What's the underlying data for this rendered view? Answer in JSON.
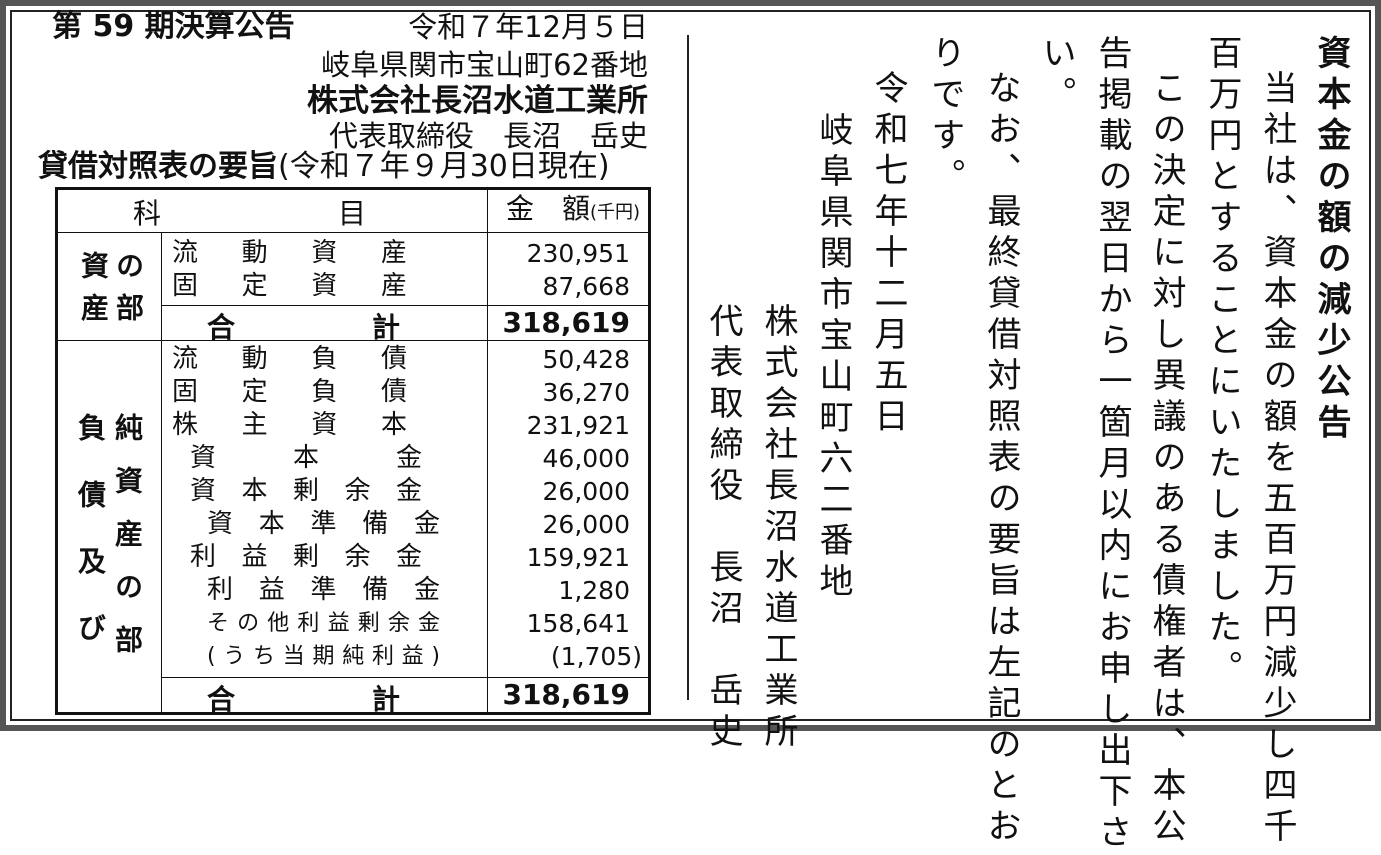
{
  "header": {
    "title": "第 59 期決算公告",
    "date": "令和７年12月５日",
    "address": "岐阜県関市宝山町62番地",
    "company": "株式会社長沼水道工業所",
    "representative": "代表取締役　長沼　岳史",
    "bs_title": "貸借対照表の要旨",
    "bs_date": "(令和７年９月30日現在)"
  },
  "table": {
    "col_item_left": "科",
    "col_item_right": "目",
    "col_amount": "金　額",
    "unit": "(千円)",
    "assets_section": "資産の部",
    "assets": [
      {
        "label": "流動資産",
        "value": "230,951"
      },
      {
        "label": "固定資産",
        "value": "87,668"
      }
    ],
    "assets_total": {
      "label_left": "合",
      "label_right": "計",
      "value": "318,619"
    },
    "liab_section_left": "負債及び",
    "liab_section_right": "純資産の部",
    "liabilities": [
      {
        "label": "流動負債",
        "value": "50,428",
        "level": 0
      },
      {
        "label": "固定負債",
        "value": "36,270",
        "level": 0
      },
      {
        "label": "株主資本",
        "value": "231,921",
        "level": 0
      },
      {
        "label": "資本金",
        "value": "46,000",
        "level": 1
      },
      {
        "label": "資本剰余金",
        "value": "26,000",
        "level": 1
      },
      {
        "label": "資本準備金",
        "value": "26,000",
        "level": 2
      },
      {
        "label": "利益剰余金",
        "value": "159,921",
        "level": 1
      },
      {
        "label": "利益準備金",
        "value": "1,280",
        "level": 2
      },
      {
        "label": "その他利益剰余金",
        "value": "158,641",
        "level": 2
      },
      {
        "label": "(うち当期純利益)",
        "value": "(1,705)",
        "level": 2
      }
    ],
    "liab_total": {
      "label_left": "合",
      "label_right": "計",
      "value": "318,619"
    }
  },
  "notice": {
    "title": "資本金の額の減少公告",
    "lines": [
      "当社は、資本金の額を五百万円減少し四千",
      "百万円とすることにいたしました。",
      "この決定に対し異議のある債権者は、本公",
      "告掲載の翌日から一箇月以内にお申し出下さ",
      "い。",
      "なお、最終貸借対照表の要旨は左記のとお",
      "りです。"
    ],
    "date": "令和七年十二月五日",
    "address": "岐阜県関市宝山町六二番地",
    "company": "株式会社長沼水道工業所",
    "representative": "代表取締役　長沼　岳史"
  }
}
